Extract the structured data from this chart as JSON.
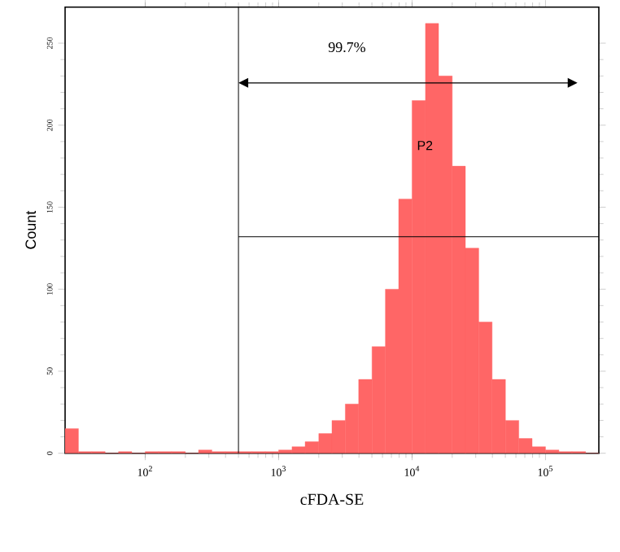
{
  "chart_data": {
    "type": "histogram",
    "xlabel": "cFDA-SE",
    "ylabel": "Count",
    "color": "#ff6666",
    "log": "x",
    "grid": false,
    "bins": [
      25.1,
      31.6,
      39.8,
      50.1,
      63.1,
      79.4,
      100,
      126,
      158,
      200,
      251,
      316,
      398,
      501,
      631,
      794,
      1000,
      1260,
      1580,
      2000,
      2510,
      3160,
      3980,
      5010,
      6310,
      7940,
      10000,
      12600,
      15800,
      20000,
      25100,
      31600,
      39800,
      50100,
      63100,
      79400,
      100000,
      126000,
      158000,
      200000,
      251000
    ],
    "values": [
      15,
      1,
      1,
      0,
      1,
      0,
      1,
      1,
      1,
      0,
      2,
      1,
      1,
      1,
      1,
      1,
      2,
      4,
      7,
      12,
      20,
      30,
      45,
      65,
      100,
      155,
      215,
      262,
      230,
      175,
      125,
      80,
      45,
      20,
      9,
      4,
      2,
      1,
      1,
      0
    ],
    "xlim": [
      25.1,
      251000
    ],
    "ylim": [
      0,
      272
    ],
    "xticks": [
      {
        "value": 100,
        "label": "10$^{2}$"
      },
      {
        "value": 1000,
        "label": "10$^{3}$"
      },
      {
        "value": 10000,
        "label": "10$^{4}$"
      },
      {
        "value": 100000,
        "label": "10$^{5}$"
      }
    ],
    "yticks": [
      0,
      50,
      100,
      150,
      200,
      250
    ],
    "ref_lines": [
      {
        "axis": "x",
        "value": 500,
        "color": "#000000"
      },
      {
        "axis": "y",
        "value": 132,
        "color": "#000000"
      }
    ],
    "annotations": [
      "99.7%",
      "P2"
    ]
  }
}
